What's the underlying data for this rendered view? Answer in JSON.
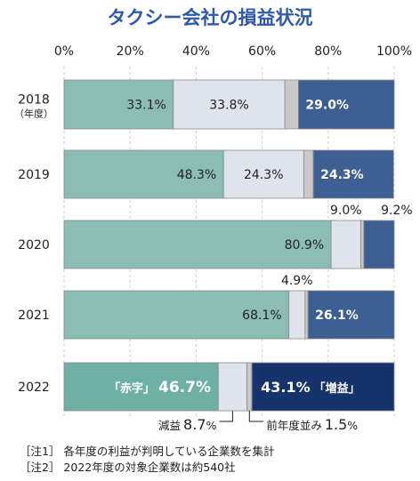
{
  "chart_data": {
    "type": "bar",
    "stacked": "horizontal-100-percent",
    "title": "タクシー会社の損益状況",
    "xlim": [
      0,
      100
    ],
    "x_ticks": [
      "0%",
      "20%",
      "40%",
      "60%",
      "80%",
      "100%"
    ],
    "categories": [
      "2018",
      "2019",
      "2020",
      "2021",
      "2022"
    ],
    "category_sublabels": {
      "2018": "（年度）"
    },
    "series": [
      {
        "key": "red",
        "values": [
          33.1,
          48.3,
          80.9,
          68.1,
          46.7
        ],
        "labels": [
          "33.1%",
          "48.3%",
          "80.9%",
          "68.1%",
          "46.7%"
        ]
      },
      {
        "key": "decrease",
        "values": [
          33.8,
          24.3,
          9.0,
          4.9,
          8.7
        ],
        "labels": [
          "33.8%",
          "24.3%",
          "9.0%",
          "4.9%",
          "8.7%"
        ]
      },
      {
        "key": "flat",
        "values": [
          4.1,
          2.9,
          0.9,
          0.9,
          1.5
        ],
        "labels": [
          "",
          "",
          "",
          "",
          "1.5%"
        ]
      },
      {
        "key": "increase",
        "values": [
          29.0,
          24.3,
          9.2,
          26.1,
          43.1
        ],
        "labels": [
          "29.0%",
          "24.3%",
          "9.2%",
          "26.1%",
          "43.1%"
        ]
      }
    ],
    "colors": {
      "red": "#8bbdb5",
      "red_2022": "#6fb0a6",
      "decrease": "#dfe3ec",
      "decrease_2022": "#dfe3ec",
      "flat": "#c9c9c9",
      "flat_2022": "#c9c9c9",
      "increase": "#3e5f92",
      "increase_2022": "#17336b"
    },
    "callouts_2022": {
      "red_prefix": "「赤字」",
      "increase_suffix": "「増益」",
      "decrease_name": "減益",
      "decrease_num": "8.7",
      "flat_name": "前年度並み",
      "flat_num": "1.5",
      "unit": "%"
    },
    "notes": [
      "［注1］ 各年度の利益が判明している企業数を集計",
      "［注2］ 2022年度の対象企業数は約540社"
    ]
  }
}
